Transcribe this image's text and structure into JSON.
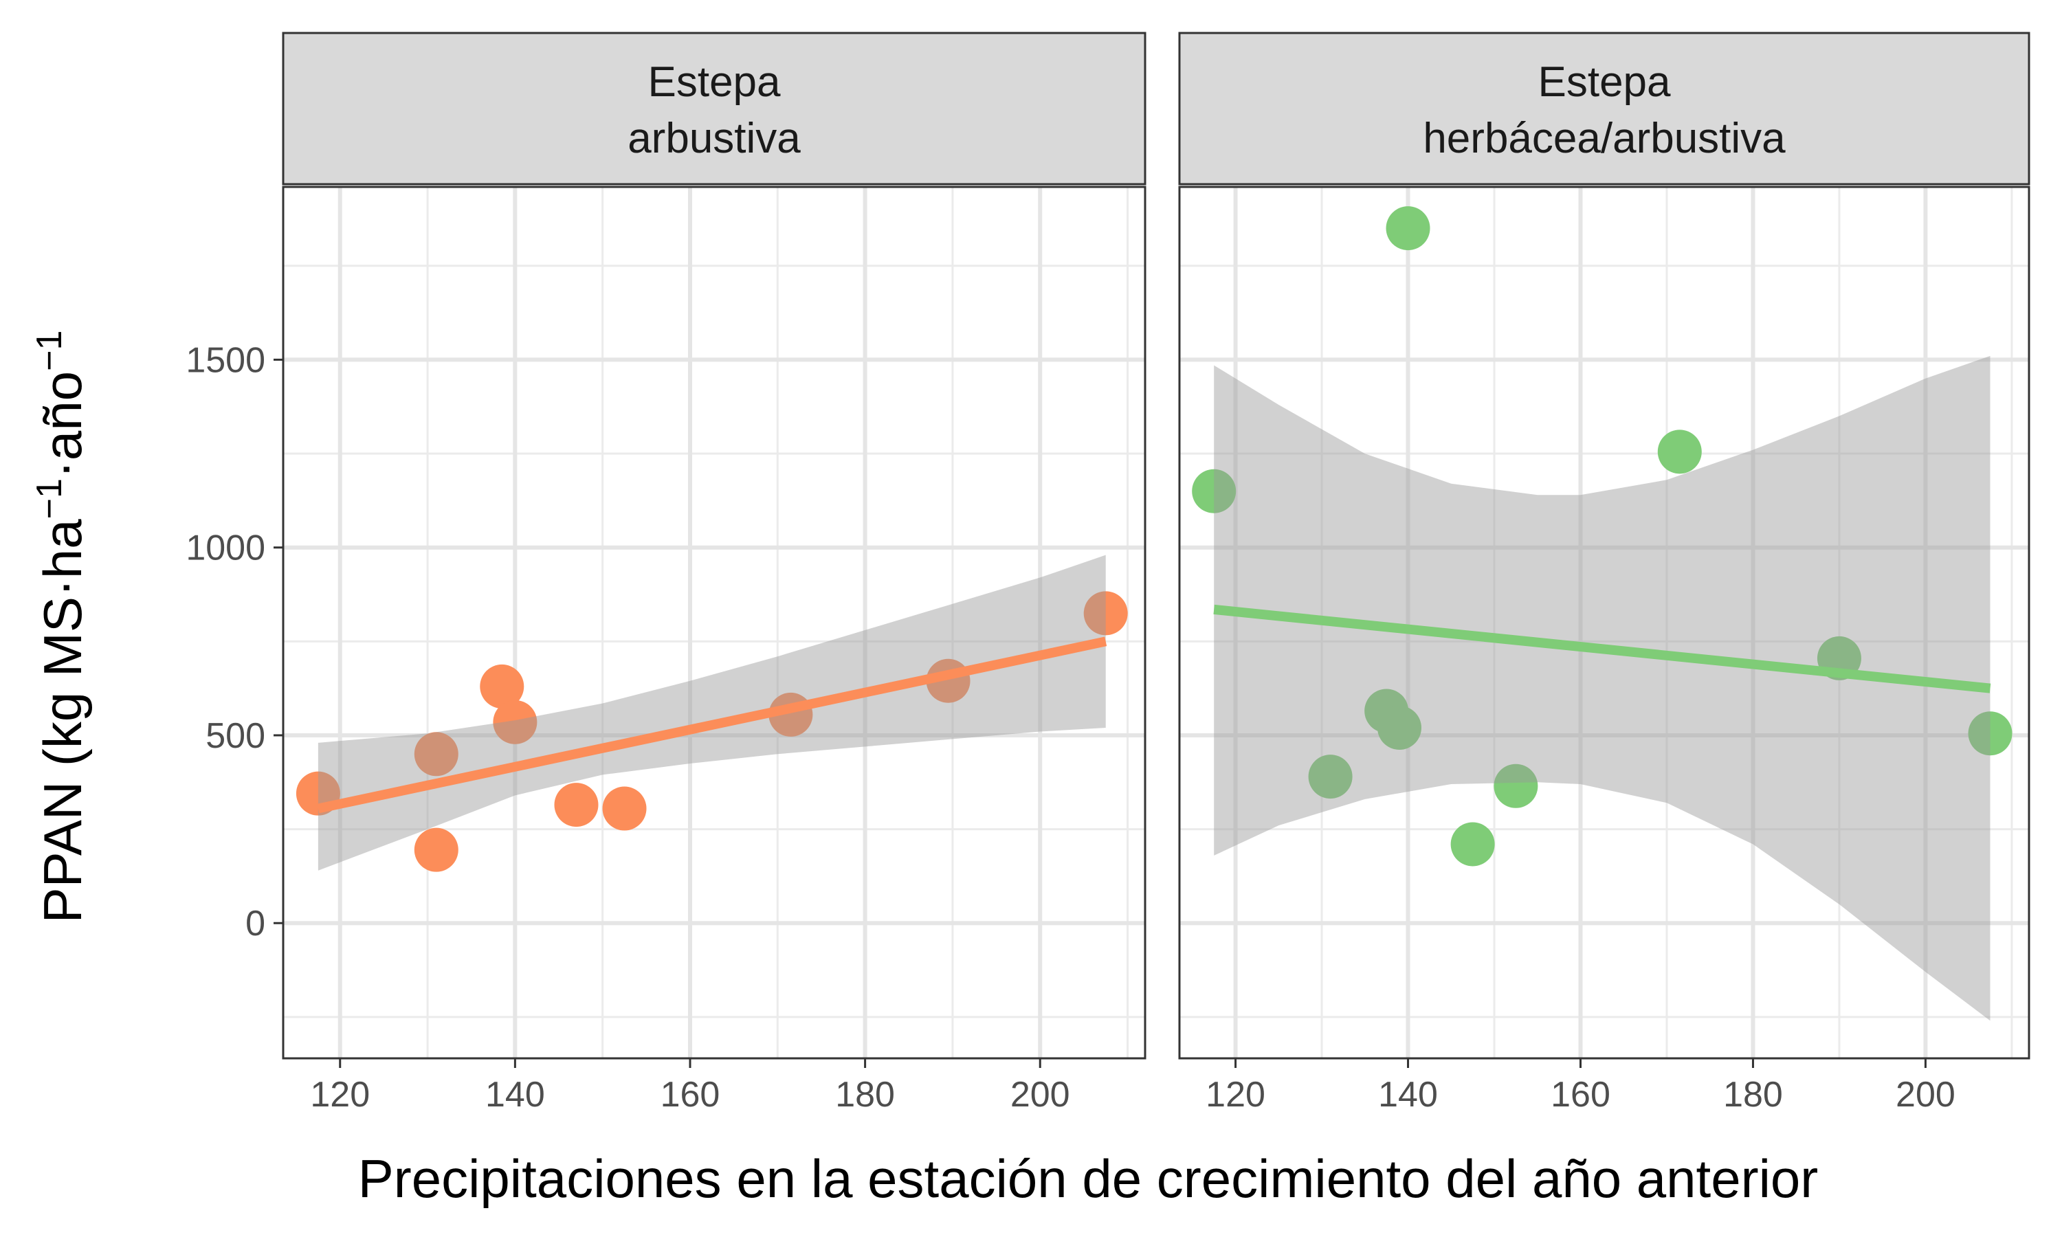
{
  "chart_data": {
    "type": "scatter",
    "xlabel": "Precipitaciones en la estación de crecimiento del año anterior",
    "ylabel": {
      "parts": [
        "PPAN (kg MS·ha",
        "−1",
        "·año",
        "−1"
      ]
    },
    "x_ticks": [
      120,
      140,
      160,
      180,
      200
    ],
    "y_ticks": [
      0,
      500,
      1000,
      1500
    ],
    "xlim": [
      113.5,
      212
    ],
    "ylim": [
      -360,
      1960
    ],
    "grid": true,
    "panels": [
      {
        "strip": [
          "Estepa",
          "arbustiva"
        ],
        "color": "#FC8D59",
        "points": [
          {
            "x": 117.5,
            "y": 345
          },
          {
            "x": 131,
            "y": 195
          },
          {
            "x": 131,
            "y": 450
          },
          {
            "x": 138.5,
            "y": 630
          },
          {
            "x": 140,
            "y": 535
          },
          {
            "x": 147,
            "y": 315
          },
          {
            "x": 152.5,
            "y": 305
          },
          {
            "x": 171.5,
            "y": 555
          },
          {
            "x": 189.5,
            "y": 645
          },
          {
            "x": 207.5,
            "y": 825
          }
        ],
        "fit": {
          "x": [
            117.5,
            207.5
          ],
          "y": [
            305,
            750
          ]
        },
        "ribbon": {
          "x": [
            117.5,
            130,
            140,
            150,
            160,
            170,
            180,
            190,
            200,
            207.5
          ],
          "lower": [
            140,
            250,
            340,
            395,
            425,
            450,
            470,
            490,
            510,
            520
          ],
          "upper": [
            480,
            505,
            540,
            585,
            645,
            710,
            780,
            850,
            920,
            980
          ]
        }
      },
      {
        "strip": [
          "Estepa",
          "herbácea/arbustiva"
        ],
        "color": "#7FCC77",
        "points": [
          {
            "x": 117.5,
            "y": 1150
          },
          {
            "x": 131,
            "y": 390
          },
          {
            "x": 137.5,
            "y": 565
          },
          {
            "x": 139,
            "y": 520
          },
          {
            "x": 140,
            "y": 1850
          },
          {
            "x": 147.5,
            "y": 210
          },
          {
            "x": 152.5,
            "y": 365
          },
          {
            "x": 171.5,
            "y": 1255
          },
          {
            "x": 190,
            "y": 705
          },
          {
            "x": 207.5,
            "y": 505
          }
        ],
        "fit": {
          "x": [
            117.5,
            207.5
          ],
          "y": [
            835,
            625
          ]
        },
        "ribbon": {
          "x": [
            117.5,
            125,
            135,
            145,
            155,
            160,
            170,
            180,
            190,
            200,
            207.5
          ],
          "lower": [
            180,
            260,
            330,
            370,
            375,
            370,
            320,
            210,
            50,
            -130,
            -260
          ],
          "upper": [
            1485,
            1380,
            1250,
            1170,
            1140,
            1140,
            1180,
            1260,
            1350,
            1450,
            1510
          ]
        }
      }
    ]
  }
}
